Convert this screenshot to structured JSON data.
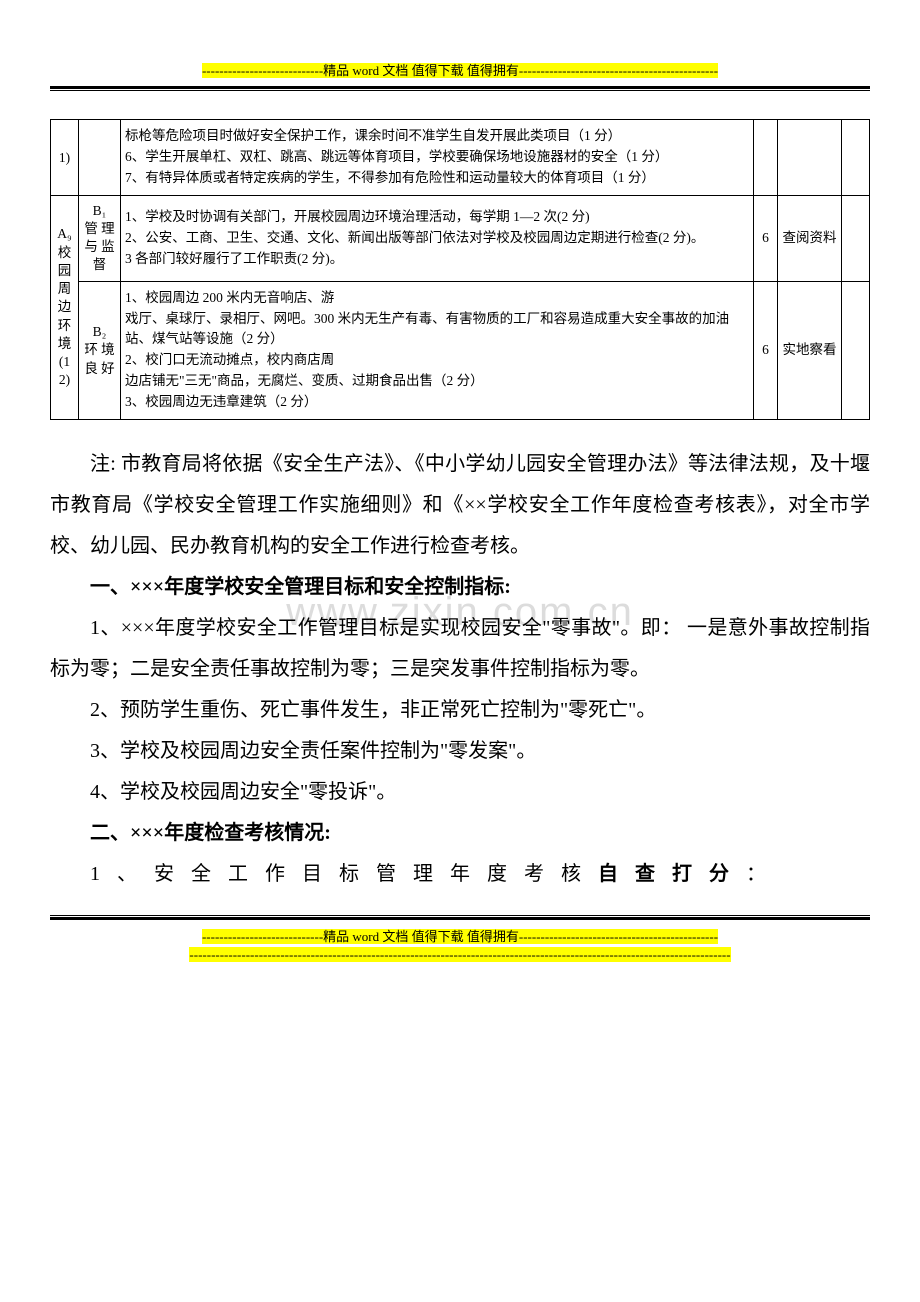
{
  "header": {
    "text": "----------------------------精品 word 文档  值得下载  值得拥有----------------------------------------------"
  },
  "watermark": "www.zixin.com.cn",
  "table": {
    "row1": {
      "a": "1)",
      "b": "",
      "c": "标枪等危险项目时做好安全保护工作，课余时间不准学生自发开展此类项目（1 分）\n6、学生开展单杠、双杠、跳高、跳远等体育项目，学校要确保场地设施器材的安全（1 分）\n7、有特异体质或者特定疾病的学生，不得参加有危险性和运动量较大的体育项目（1 分）",
      "d": "",
      "e": "",
      "f": ""
    },
    "rowA": {
      "a": "A₉\n校\n园\n周\n边\n环\n境\n(1\n2)"
    },
    "row2": {
      "b": "B₁\n管 理\n与 监\n督",
      "c": "1、学校及时协调有关部门，开展校园周边环境治理活动，每学期 1—2 次(2 分)\n2、公安、工商、卫生、交通、文化、新闻出版等部门依法对学校及校园周边定期进行检查(2 分)。\n3 各部门较好履行了工作职责(2 分)。",
      "d": "6",
      "e": "查阅资料",
      "f": ""
    },
    "row3": {
      "b": "B₂\n环 境\n良 好",
      "c": "1、校园周边 200 米内无音响店、游\n戏厅、桌球厅、录相厅、网吧。300 米内无生产有毒、有害物质的工厂和容易造成重大安全事故的加油站、煤气站等设施（2 分）\n2、校门口无流动摊点，校内商店周\n边店铺无\"三无\"商品，无腐烂、变质、过期食品出售（2 分）\n3、校园周边无违章建筑（2 分）",
      "d": "6",
      "e": "实地察看",
      "f": ""
    }
  },
  "body": {
    "p1": "注: 市教育局将依据《安全生产法》、《中小学幼儿园安全管理办法》等法律法规，及十堰市教育局《学校安全管理工作实施细则》和《××学校安全工作年度检查考核表》，对全市学校、幼儿园、民办教育机构的安全工作进行检查考核。",
    "h1": "一、×××年度学校安全管理目标和安全控制指标:",
    "p2": "1、×××年度学校安全工作管理目标是实现校园安全\"零事故\"。即：  一是意外事故控制指标为零；二是安全责任事故控制为零；三是突发事件控制指标为零。",
    "p3": "2、预防学生重伤、死亡事件发生，非正常死亡控制为\"零死亡\"。",
    "p4": "3、学校及校园周边安全责任案件控制为\"零发案\"。",
    "p5": "4、学校及校园周边安全\"零投诉\"。",
    "h2": "二、×××年度检查考核情况:",
    "p6_a": "1 、 安 全 工 作 目 标 管 理 年 度 考 核 ",
    "p6_b": "自 查 打 分",
    "p6_c": " ："
  },
  "footer": {
    "line1": "----------------------------精品 word 文档  值得下载  值得拥有----------------------------------------------",
    "line2": "-----------------------------------------------------------------------------------------------------------------------------"
  }
}
